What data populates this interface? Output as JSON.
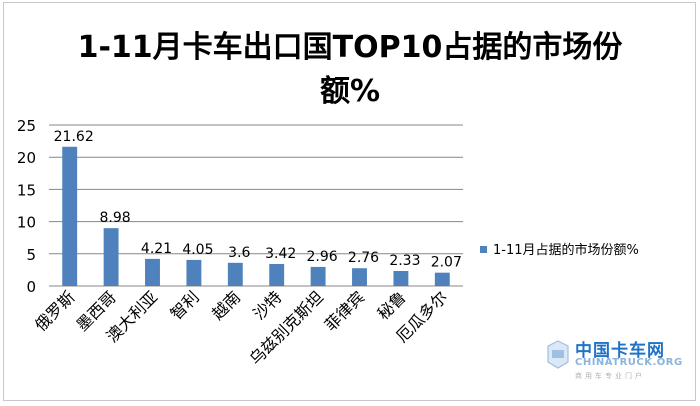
{
  "chart_data": {
    "type": "bar",
    "title_lines": [
      "1-11月卡车出口国TOP10占据的市场份",
      "额%"
    ],
    "categories": [
      "俄罗斯",
      "墨西哥",
      "澳大利亚",
      "智利",
      "越南",
      "沙特",
      "乌兹别克斯坦",
      "菲律宾",
      "秘鲁",
      "厄瓜多尔"
    ],
    "series": [
      {
        "name": "1-11月占据的市场份额%",
        "values": [
          21.62,
          8.98,
          4.21,
          4.05,
          3.6,
          3.42,
          2.96,
          2.76,
          2.33,
          2.07
        ],
        "value_labels": [
          "21.62",
          "8.98",
          "4.21",
          "4.05",
          "3.6",
          "3.42",
          "2.96",
          "2.76",
          "2.33",
          "2.07"
        ],
        "color": "#4f81bd"
      }
    ],
    "ylim": [
      0,
      25
    ],
    "yticks": [
      0,
      5,
      10,
      15,
      20,
      25
    ],
    "xlabel": "",
    "ylabel": "",
    "grid": true,
    "legend": "right"
  },
  "watermark": {
    "name": "中国卡车网",
    "domain": "CHINATRUCK.ORG",
    "tagline": "商用车专业门户"
  },
  "colors": {
    "bar": "#4f81bd",
    "grid": "#878787",
    "text": "#000000"
  }
}
